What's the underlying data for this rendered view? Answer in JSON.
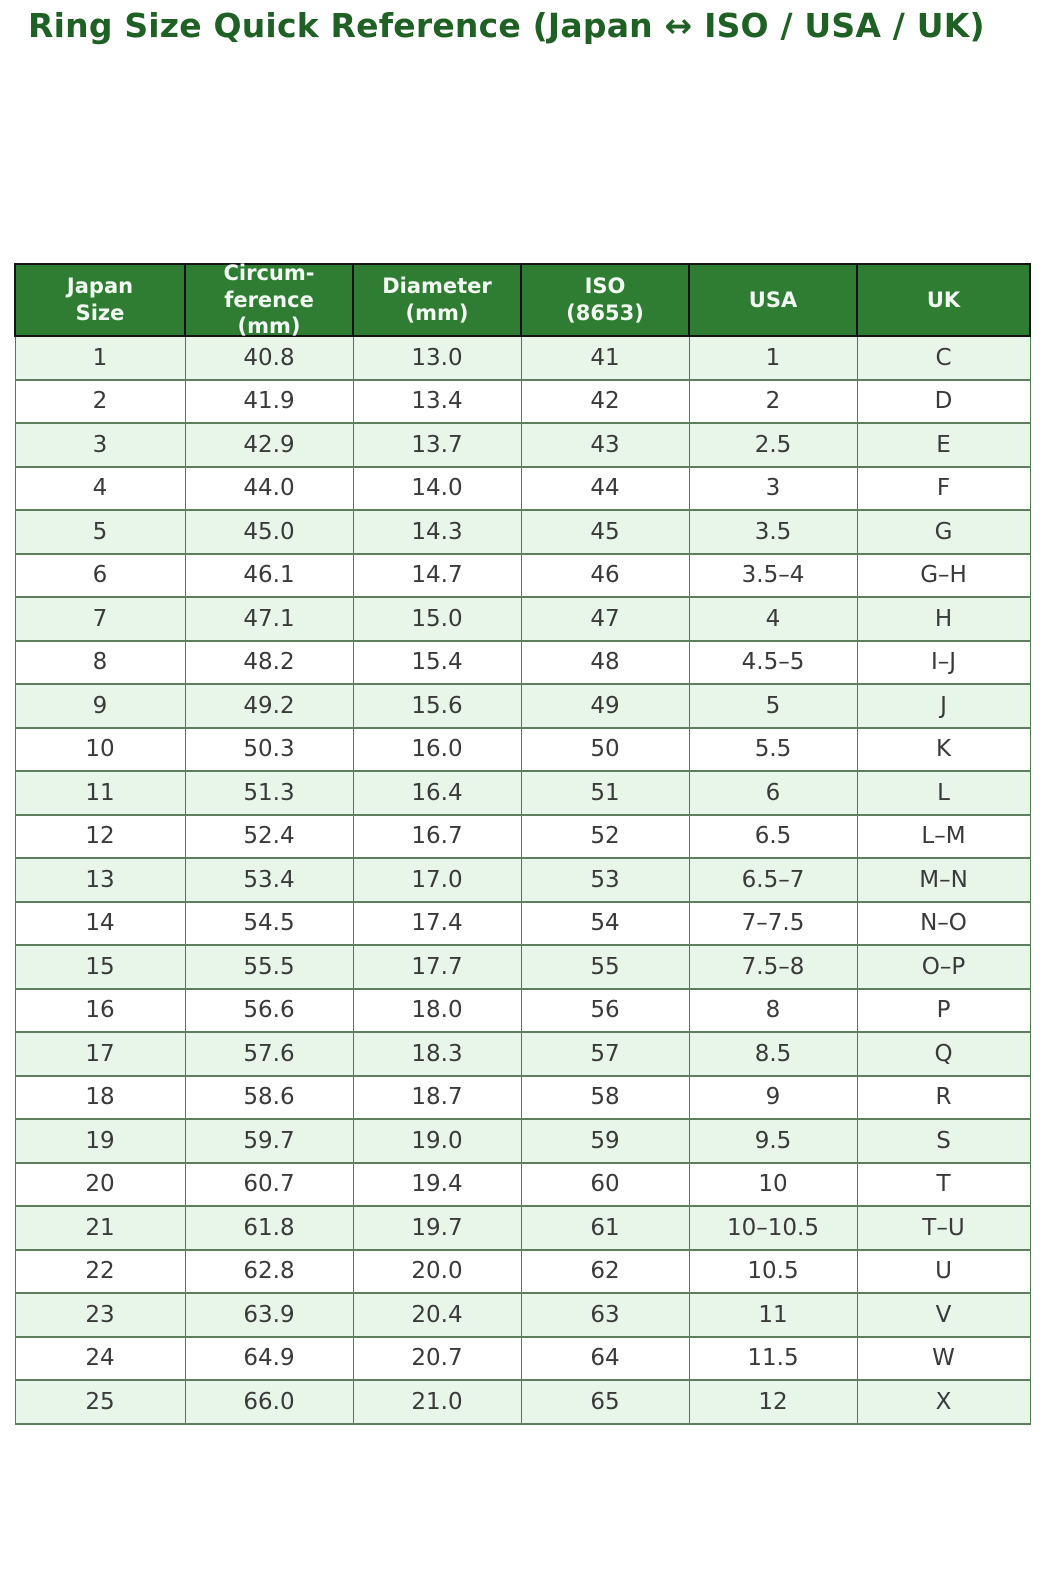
{
  "title": "Ring Size Quick Reference (Japan ↔ ISO / USA / UK)",
  "colors": {
    "title_text": "#1f6125",
    "header_bg": "#2e7d32",
    "header_text": "#f2f8f2",
    "header_border": "#141414",
    "row_odd_bg": "#e8f5e9",
    "row_even_bg": "#ffffff",
    "grid_line": "#47804c",
    "cell_text": "#3a3a3a"
  },
  "chart_data": {
    "type": "table",
    "title": "Ring Size Quick Reference (Japan ↔ ISO / USA / UK)",
    "columns": [
      "Japan\nSize",
      "Circum-\nference\n(mm)",
      "Diameter\n(mm)",
      "ISO\n(8653)",
      "USA",
      "UK"
    ],
    "rows": [
      [
        "1",
        "40.8",
        "13.0",
        "41",
        "1",
        "C"
      ],
      [
        "2",
        "41.9",
        "13.4",
        "42",
        "2",
        "D"
      ],
      [
        "3",
        "42.9",
        "13.7",
        "43",
        "2.5",
        "E"
      ],
      [
        "4",
        "44.0",
        "14.0",
        "44",
        "3",
        "F"
      ],
      [
        "5",
        "45.0",
        "14.3",
        "45",
        "3.5",
        "G"
      ],
      [
        "6",
        "46.1",
        "14.7",
        "46",
        "3.5–4",
        "G–H"
      ],
      [
        "7",
        "47.1",
        "15.0",
        "47",
        "4",
        "H"
      ],
      [
        "8",
        "48.2",
        "15.4",
        "48",
        "4.5–5",
        "I–J"
      ],
      [
        "9",
        "49.2",
        "15.6",
        "49",
        "5",
        "J"
      ],
      [
        "10",
        "50.3",
        "16.0",
        "50",
        "5.5",
        "K"
      ],
      [
        "11",
        "51.3",
        "16.4",
        "51",
        "6",
        "L"
      ],
      [
        "12",
        "52.4",
        "16.7",
        "52",
        "6.5",
        "L–M"
      ],
      [
        "13",
        "53.4",
        "17.0",
        "53",
        "6.5–7",
        "M–N"
      ],
      [
        "14",
        "54.5",
        "17.4",
        "54",
        "7–7.5",
        "N–O"
      ],
      [
        "15",
        "55.5",
        "17.7",
        "55",
        "7.5–8",
        "O–P"
      ],
      [
        "16",
        "56.6",
        "18.0",
        "56",
        "8",
        "P"
      ],
      [
        "17",
        "57.6",
        "18.3",
        "57",
        "8.5",
        "Q"
      ],
      [
        "18",
        "58.6",
        "18.7",
        "58",
        "9",
        "R"
      ],
      [
        "19",
        "59.7",
        "19.0",
        "59",
        "9.5",
        "S"
      ],
      [
        "20",
        "60.7",
        "19.4",
        "60",
        "10",
        "T"
      ],
      [
        "21",
        "61.8",
        "19.7",
        "61",
        "10–10.5",
        "T–U"
      ],
      [
        "22",
        "62.8",
        "20.0",
        "62",
        "10.5",
        "U"
      ],
      [
        "23",
        "63.9",
        "20.4",
        "63",
        "11",
        "V"
      ],
      [
        "24",
        "64.9",
        "20.7",
        "64",
        "11.5",
        "W"
      ],
      [
        "25",
        "66.0",
        "21.0",
        "65",
        "12",
        "X"
      ]
    ]
  }
}
